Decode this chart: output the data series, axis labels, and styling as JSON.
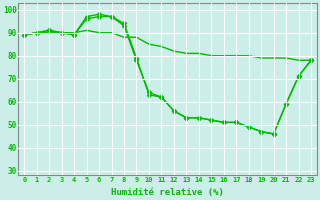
{
  "title": "",
  "xlabel": "Humidité relative (%)",
  "ylabel": "",
  "background_color": "#cceee8",
  "grid_color": "#ffffff",
  "line_color": "#00bb00",
  "xlim": [
    -0.5,
    23.5
  ],
  "ylim": [
    28,
    103
  ],
  "yticks": [
    30,
    40,
    50,
    60,
    70,
    80,
    90,
    100
  ],
  "xticks": [
    0,
    1,
    2,
    3,
    4,
    5,
    6,
    7,
    8,
    9,
    10,
    11,
    12,
    13,
    14,
    15,
    16,
    17,
    18,
    19,
    20,
    21,
    22,
    23
  ],
  "series": [
    [
      89,
      90,
      90,
      89,
      90,
      97,
      97,
      98,
      94,
      79,
      78,
      79,
      79,
      79,
      79,
      79,
      79,
      79,
      79,
      79,
      79,
      79,
      78,
      78
    ],
    [
      89,
      90,
      91,
      90,
      89,
      97,
      98,
      97,
      94,
      78,
      64,
      62,
      56,
      53,
      53,
      52,
      51,
      51,
      49,
      47,
      46,
      59,
      71,
      78
    ],
    [
      89,
      90,
      91,
      90,
      89,
      96,
      97,
      97,
      94,
      78,
      64,
      62,
      56,
      53,
      53,
      52,
      51,
      51,
      49,
      47,
      46,
      59,
      71,
      78
    ]
  ],
  "series_no_marker": [
    [
      89,
      90,
      90,
      89,
      90,
      97,
      97,
      98,
      94,
      79,
      78,
      79,
      79,
      79,
      79,
      79,
      79,
      79,
      79,
      79,
      79,
      79,
      78,
      78
    ]
  ],
  "marker": "D",
  "marker_size": 2.5,
  "line_width": 1.0,
  "series_data": [
    {
      "y": [
        89,
        90,
        90,
        90,
        90,
        91,
        90,
        90,
        88,
        88,
        85,
        84,
        82,
        81,
        81,
        80,
        80,
        80,
        80,
        79,
        79,
        79,
        78,
        78
      ],
      "marker": false
    },
    {
      "y": [
        89,
        90,
        91,
        90,
        89,
        97,
        98,
        97,
        93,
        78,
        64,
        62,
        56,
        53,
        53,
        52,
        51,
        51,
        49,
        47,
        46,
        59,
        71,
        78
      ],
      "marker": true
    },
    {
      "y": [
        89,
        90,
        91,
        90,
        89,
        96,
        97,
        97,
        94,
        79,
        63,
        62,
        56,
        53,
        53,
        52,
        51,
        51,
        49,
        47,
        46,
        59,
        71,
        78
      ],
      "marker": true
    }
  ]
}
